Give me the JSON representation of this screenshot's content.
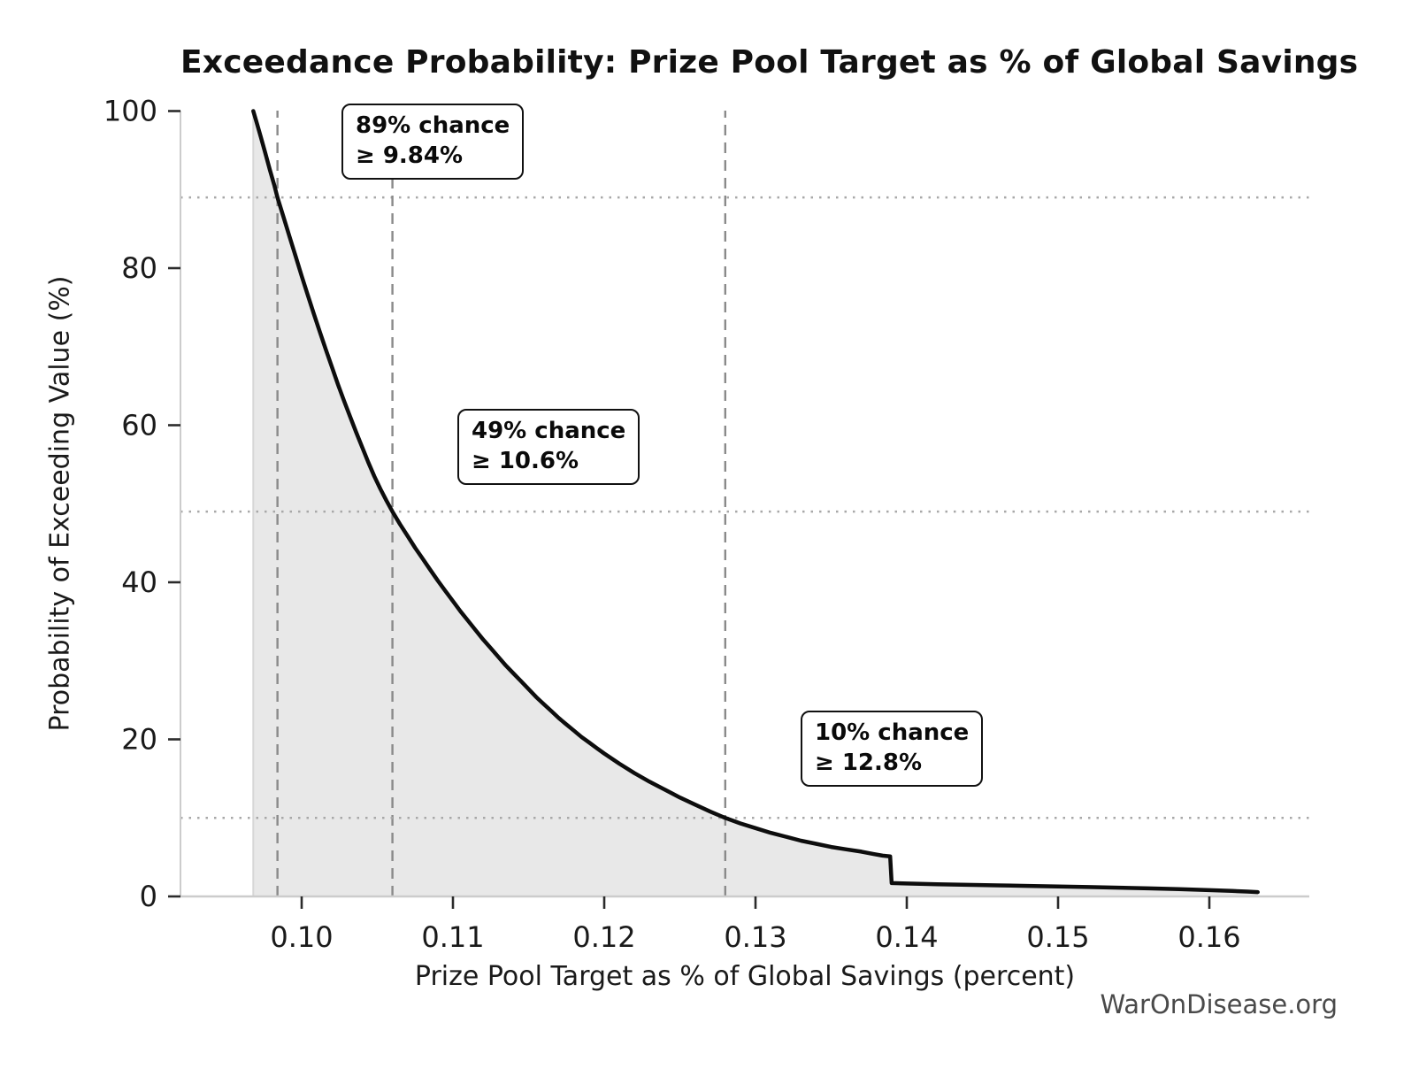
{
  "watermark": "WarOnDisease.org",
  "chart_data": {
    "type": "line",
    "title": "Exceedance Probability: Prize Pool Target as % of Global Savings",
    "xlabel": "Prize Pool Target as % of Global Savings (percent)",
    "ylabel": "Probability of Exceeding Value (%)",
    "legend": "none",
    "grid": "horizontal dotted and vertical dashed guide lines at threshold values only",
    "xlim": [
      0.092,
      0.1666
    ],
    "ylim": [
      0,
      100
    ],
    "x_ticks": [
      0.1,
      0.11,
      0.12,
      0.13,
      0.14,
      0.15,
      0.16
    ],
    "x_tick_labels": [
      "0.10",
      "0.11",
      "0.12",
      "0.13",
      "0.14",
      "0.15",
      "0.16"
    ],
    "y_ticks": [
      0,
      20,
      40,
      60,
      80,
      100
    ],
    "y_tick_labels": [
      "0",
      "20",
      "40",
      "60",
      "80",
      "100"
    ],
    "thresholds": [
      {
        "chance_label": "89% chance",
        "value_label": "≥ 9.84%",
        "x": 0.0984,
        "probability": 89
      },
      {
        "chance_label": "49% chance",
        "value_label": "≥ 10.6%",
        "x": 0.106,
        "probability": 49
      },
      {
        "chance_label": "10% chance",
        "value_label": "≥ 12.8%",
        "x": 0.128,
        "probability": 10
      }
    ],
    "series": [
      {
        "name": "exceedance-probability-curve",
        "fill_under": true,
        "points": [
          [
            0.0968,
            100
          ],
          [
            0.097,
            98.7
          ],
          [
            0.0973,
            96.7
          ],
          [
            0.0976,
            94.6
          ],
          [
            0.0979,
            92.5
          ],
          [
            0.0982,
            90.5
          ],
          [
            0.0984,
            89.0
          ],
          [
            0.0988,
            86.5
          ],
          [
            0.0992,
            84.0
          ],
          [
            0.0996,
            81.5
          ],
          [
            0.1,
            79.0
          ],
          [
            0.1004,
            76.6
          ],
          [
            0.1008,
            74.2
          ],
          [
            0.1012,
            71.9
          ],
          [
            0.1016,
            69.6
          ],
          [
            0.102,
            67.4
          ],
          [
            0.1024,
            65.2
          ],
          [
            0.1028,
            63.1
          ],
          [
            0.1032,
            61.1
          ],
          [
            0.1036,
            59.1
          ],
          [
            0.104,
            57.2
          ],
          [
            0.1044,
            55.3
          ],
          [
            0.1048,
            53.5
          ],
          [
            0.1052,
            51.9
          ],
          [
            0.1056,
            50.4
          ],
          [
            0.106,
            49.0
          ],
          [
            0.1065,
            47.4
          ],
          [
            0.107,
            45.9
          ],
          [
            0.1075,
            44.4
          ],
          [
            0.108,
            43.0
          ],
          [
            0.1085,
            41.6
          ],
          [
            0.109,
            40.2
          ],
          [
            0.1095,
            38.9
          ],
          [
            0.11,
            37.6
          ],
          [
            0.1105,
            36.3
          ],
          [
            0.111,
            35.1
          ],
          [
            0.1115,
            33.9
          ],
          [
            0.112,
            32.7
          ],
          [
            0.1125,
            31.6
          ],
          [
            0.113,
            30.5
          ],
          [
            0.1135,
            29.4
          ],
          [
            0.114,
            28.4
          ],
          [
            0.1145,
            27.4
          ],
          [
            0.115,
            26.4
          ],
          [
            0.1155,
            25.4
          ],
          [
            0.116,
            24.5
          ],
          [
            0.1165,
            23.6
          ],
          [
            0.117,
            22.7
          ],
          [
            0.1175,
            21.9
          ],
          [
            0.118,
            21.1
          ],
          [
            0.1185,
            20.3
          ],
          [
            0.119,
            19.6
          ],
          [
            0.1195,
            18.9
          ],
          [
            0.12,
            18.2
          ],
          [
            0.121,
            16.9
          ],
          [
            0.122,
            15.7
          ],
          [
            0.123,
            14.6
          ],
          [
            0.124,
            13.6
          ],
          [
            0.125,
            12.6
          ],
          [
            0.126,
            11.7
          ],
          [
            0.127,
            10.8
          ],
          [
            0.128,
            10.0
          ],
          [
            0.129,
            9.3
          ],
          [
            0.13,
            8.7
          ],
          [
            0.131,
            8.1
          ],
          [
            0.132,
            7.6
          ],
          [
            0.133,
            7.1
          ],
          [
            0.134,
            6.7
          ],
          [
            0.135,
            6.3
          ],
          [
            0.136,
            6.0
          ],
          [
            0.137,
            5.7
          ],
          [
            0.1378,
            5.4
          ],
          [
            0.1384,
            5.2
          ],
          [
            0.1389,
            5.1
          ],
          [
            0.139,
            1.7
          ],
          [
            0.14,
            1.64
          ],
          [
            0.142,
            1.56
          ],
          [
            0.144,
            1.48
          ],
          [
            0.146,
            1.41
          ],
          [
            0.148,
            1.34
          ],
          [
            0.15,
            1.27
          ],
          [
            0.152,
            1.19
          ],
          [
            0.154,
            1.11
          ],
          [
            0.156,
            1.02
          ],
          [
            0.158,
            0.92
          ],
          [
            0.16,
            0.8
          ],
          [
            0.1615,
            0.7
          ],
          [
            0.1625,
            0.62
          ],
          [
            0.1632,
            0.55
          ]
        ]
      }
    ],
    "colors": {
      "curve": "#0d0d0d",
      "fill_under_curve": "#e8e8e8",
      "fill_left_edge": "#d6d6d6",
      "dashed_vertical_guide": "#8a8a8a",
      "dotted_horizontal_guide": "#a8a8a8",
      "axis_spine": "#cccccc",
      "tick_mark": "#2b2b2b",
      "tick_label": "#1a1a1a",
      "annotation_border": "#111111",
      "watermark": "#4a4a4a",
      "background": "#ffffff"
    }
  }
}
